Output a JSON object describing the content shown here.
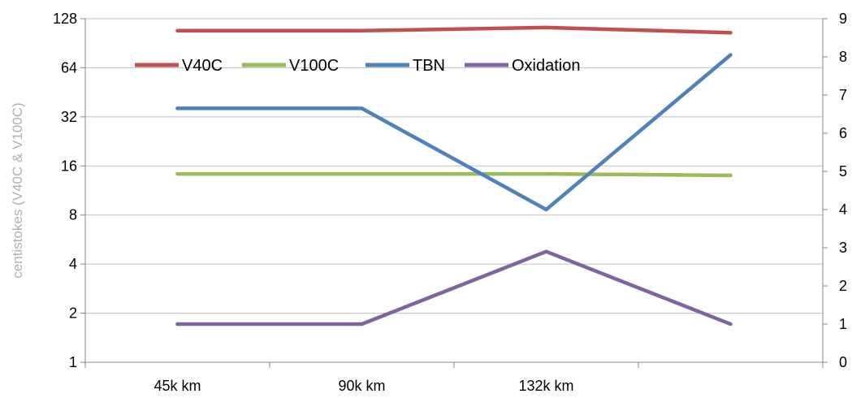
{
  "chart_data": {
    "type": "line",
    "categories": [
      "45k km",
      "90k km",
      "132k km",
      ""
    ],
    "category_labels_shown": [
      "45k km",
      "90k km",
      "132k km"
    ],
    "left_axis": {
      "label": "centistokes (V40C & V100C)",
      "scale": "log2",
      "min": 1,
      "max": 128,
      "ticks": [
        1,
        2,
        4,
        8,
        16,
        32,
        64,
        128
      ]
    },
    "right_axis": {
      "label": "",
      "scale": "linear",
      "min": 0,
      "max": 9,
      "ticks": [
        0,
        1,
        2,
        3,
        4,
        5,
        6,
        7,
        8,
        9
      ]
    },
    "grid": "horizontal",
    "legend": {
      "placement": "top-inside",
      "entries": [
        "V40C",
        "V100C",
        "TBN",
        "Oxidation"
      ]
    },
    "series": [
      {
        "name": "V40C",
        "axis": "left",
        "color": "#c0504d",
        "values": [
          108,
          108,
          113,
          105
        ]
      },
      {
        "name": "V100C",
        "axis": "left",
        "color": "#9bbb59",
        "values": [
          14.3,
          14.3,
          14.3,
          14.0
        ]
      },
      {
        "name": "TBN",
        "axis": "right",
        "color": "#4f81bd",
        "values": [
          6.65,
          6.65,
          4.0,
          8.05
        ]
      },
      {
        "name": "Oxidation",
        "axis": "right",
        "color": "#8064a2",
        "values": [
          1.0,
          1.0,
          2.9,
          1.0
        ]
      }
    ]
  }
}
